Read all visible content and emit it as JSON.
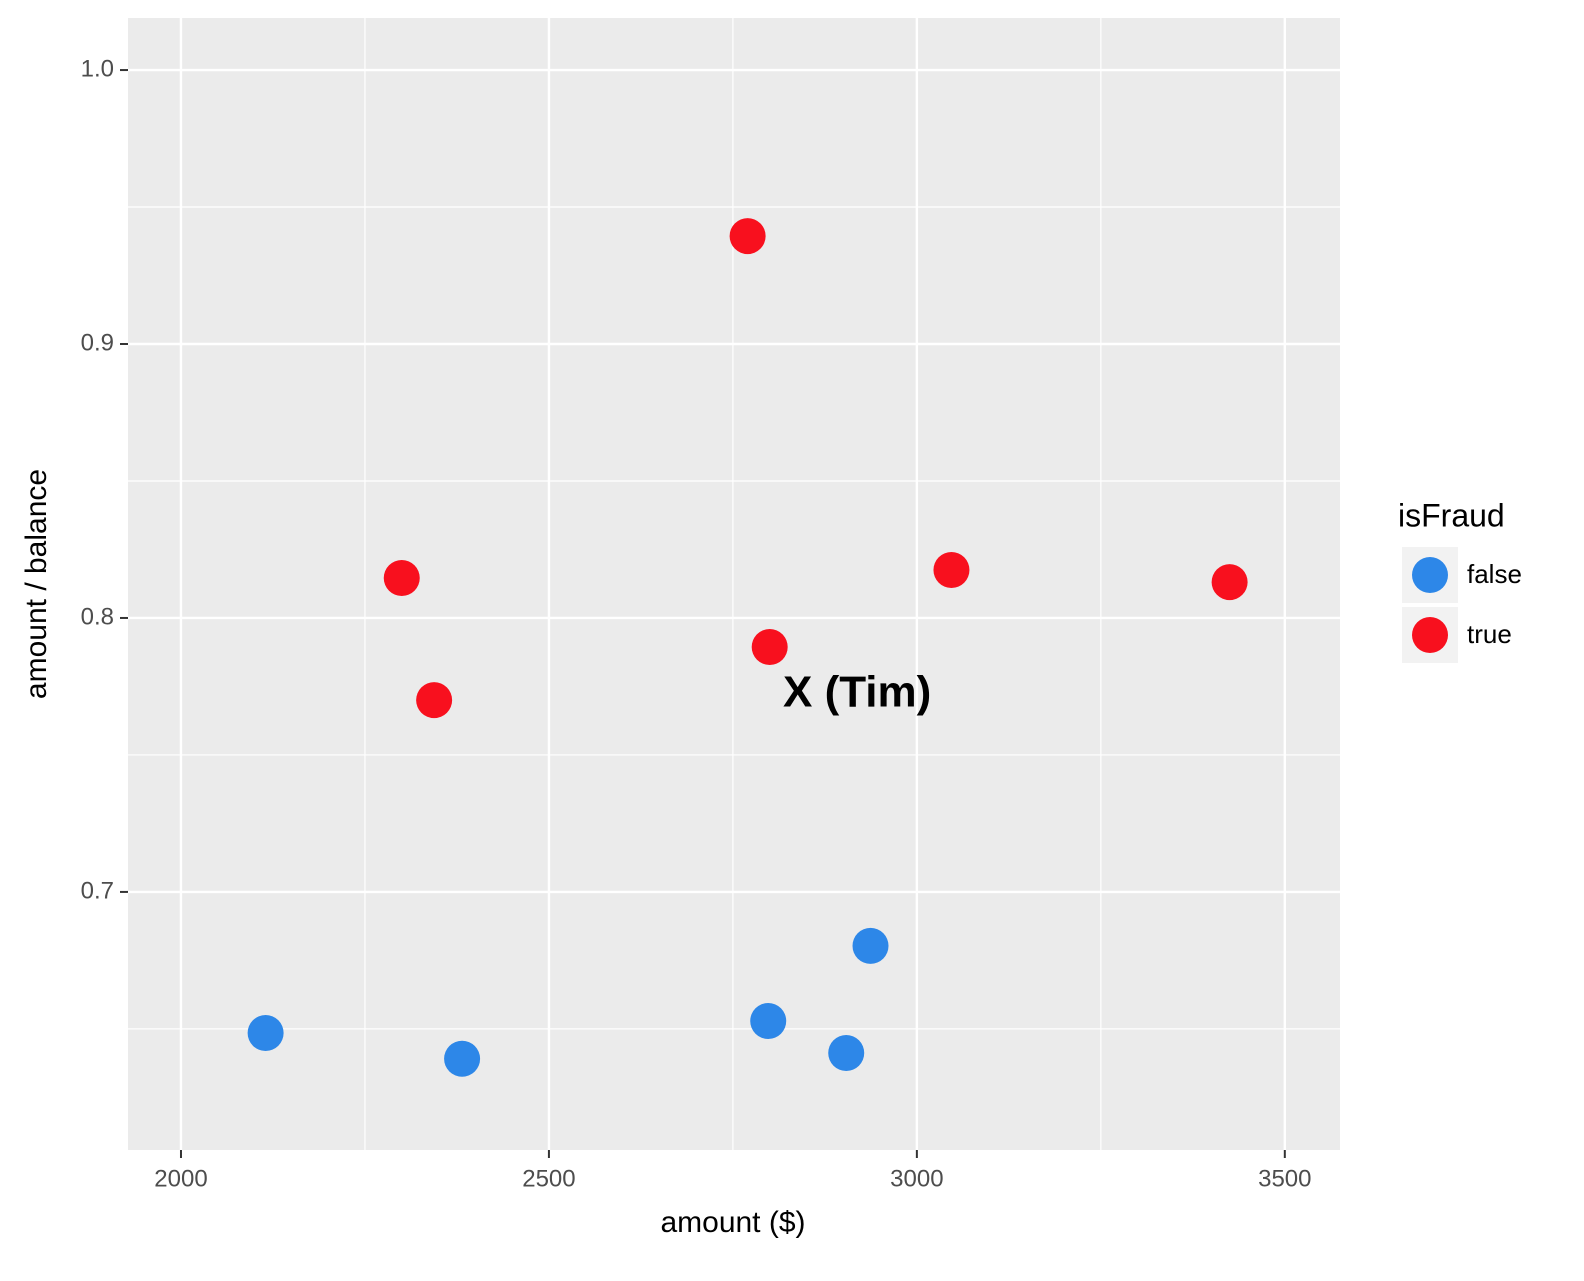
{
  "chart_data": {
    "type": "scatter",
    "x_label": "amount ($)",
    "y_label": "amount / balance",
    "legend_title": "isFraud",
    "legend": "right",
    "annotation": "X (Tim)",
    "xlim": [
      1928,
      3575
    ],
    "ylim": [
      0.6058,
      1.019
    ],
    "xticks": [
      2000,
      2500,
      3000,
      3500
    ],
    "yticks": [
      {
        "value": 0.7,
        "label": "0.7"
      },
      {
        "value": 0.8,
        "label": "0.8"
      },
      {
        "value": 0.9,
        "label": "0.9"
      },
      {
        "value": 1.0,
        "label": "1.0"
      }
    ],
    "xminor": [
      2250,
      2750,
      3250
    ],
    "yminor": [
      0.65,
      0.75,
      0.85,
      0.95
    ],
    "grid": true,
    "series": [
      {
        "name": "false",
        "color": "#2d87e8",
        "x": [
          2115,
          2382,
          2798,
          2904,
          2937
        ],
        "values": [
          0.6485,
          0.6391,
          0.6529,
          0.6412,
          0.6803
        ]
      },
      {
        "name": "true",
        "color": "#f8101e",
        "x": [
          2300,
          2344,
          2770,
          2800,
          3047,
          3425
        ],
        "values": [
          0.8146,
          0.77,
          0.9394,
          0.7894,
          0.8175,
          0.8131
        ]
      }
    ]
  }
}
